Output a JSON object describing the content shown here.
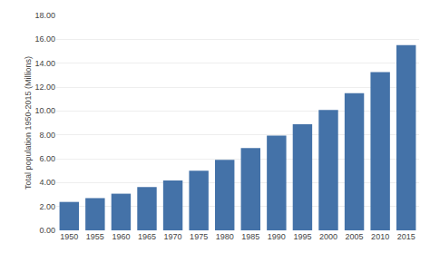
{
  "chart_data": {
    "type": "bar",
    "categories": [
      "1950",
      "1955",
      "1960",
      "1965",
      "1970",
      "1975",
      "1980",
      "1985",
      "1990",
      "1995",
      "2000",
      "2005",
      "2010",
      "2015"
    ],
    "values": [
      2.38,
      2.7,
      3.07,
      3.62,
      4.18,
      4.99,
      5.9,
      6.9,
      7.93,
      8.88,
      10.09,
      11.48,
      13.26,
      15.51
    ],
    "color": "#4472a8",
    "ylabel": "Total population 1950-2015 (Millions)",
    "ylim": [
      0,
      18.0
    ],
    "yticks": [
      {
        "value": 0,
        "label": "0.00"
      },
      {
        "value": 2,
        "label": "2.00"
      },
      {
        "value": 4,
        "label": "4.00"
      },
      {
        "value": 6,
        "label": "6.00"
      },
      {
        "value": 8,
        "label": "8.00"
      },
      {
        "value": 10,
        "label": "10.00"
      },
      {
        "value": 12,
        "label": "12.00"
      },
      {
        "value": 14,
        "label": "14.00"
      },
      {
        "value": 16,
        "label": "16.00"
      },
      {
        "value": 18,
        "label": "18.00"
      }
    ],
    "grid": true
  }
}
